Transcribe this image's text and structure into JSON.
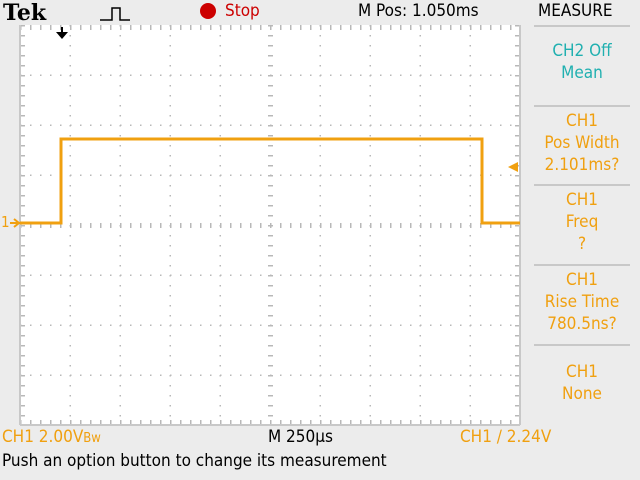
{
  "header": {
    "brand": "Tek",
    "acq_icon": "pulse-icon",
    "run_state": "Stop",
    "run_color": "#cc0000",
    "position": "M Pos: 1.050ms",
    "menu_title": "MEASURE"
  },
  "measurements": [
    {
      "source": "CH2 Off",
      "type": "Mean",
      "value": "",
      "color": "#20b0b0"
    },
    {
      "source": "CH1",
      "type": "Pos Width",
      "value": "2.101ms?",
      "color": "#f0a010"
    },
    {
      "source": "CH1",
      "type": "Freq",
      "value": "?",
      "color": "#f0a010"
    },
    {
      "source": "CH1",
      "type": "Rise Time",
      "value": "780.5ns?",
      "color": "#f0a010"
    },
    {
      "source": "CH1",
      "type": "None",
      "value": "",
      "color": "#f0a010"
    }
  ],
  "status": {
    "ch1_scale": "CH1  2.00V",
    "bw_flag": "Bw",
    "timebase": "M 250µs",
    "trigger": "CH1 ∕ 2.24V",
    "message": "Push an option button to change its measurement"
  },
  "channel_marker": "1",
  "trace_color": "#f0a010"
}
